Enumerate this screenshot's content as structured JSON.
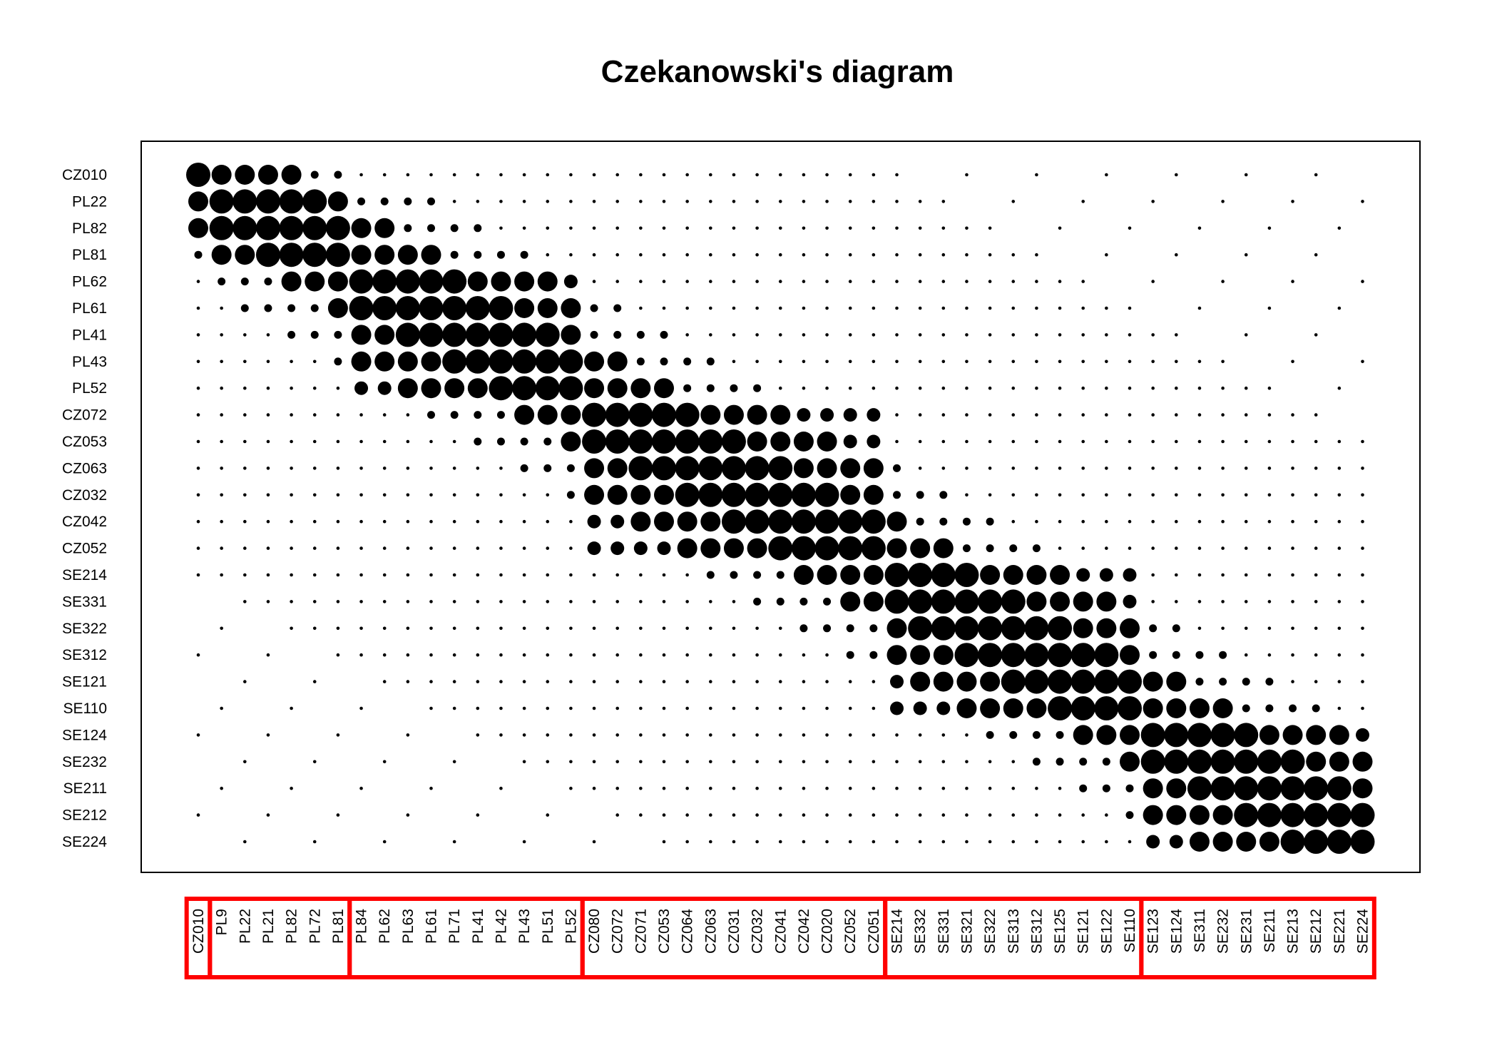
{
  "chart_data": {
    "type": "scatter",
    "title": "Czekanowski's diagram",
    "row_labels": [
      "CZ010",
      "PL22",
      "PL82",
      "PL81",
      "PL62",
      "PL61",
      "PL41",
      "PL43",
      "PL52",
      "CZ072",
      "CZ053",
      "CZ063",
      "CZ032",
      "CZ042",
      "CZ052",
      "SE214",
      "SE331",
      "SE322",
      "SE312",
      "SE121",
      "SE110",
      "SE124",
      "SE232",
      "SE211",
      "SE212",
      "SE224"
    ],
    "column_labels": [
      "CZ010",
      "PL9",
      "PL22",
      "PL21",
      "PL82",
      "PL72",
      "PL81",
      "PL84",
      "PL62",
      "PL63",
      "PL61",
      "PL71",
      "PL41",
      "PL42",
      "PL43",
      "PL51",
      "PL52",
      "CZ080",
      "CZ072",
      "CZ071",
      "CZ053",
      "CZ064",
      "CZ063",
      "CZ031",
      "CZ032",
      "CZ041",
      "CZ042",
      "CZ020",
      "CZ052",
      "CZ051",
      "SE214",
      "SE332",
      "SE331",
      "SE321",
      "SE322",
      "SE313",
      "SE312",
      "SE125",
      "SE121",
      "SE122",
      "SE110",
      "SE123",
      "SE124",
      "SE311",
      "SE232",
      "SE231",
      "SE211",
      "SE213",
      "SE212",
      "SE221",
      "SE224"
    ],
    "cluster_boxes": [
      {
        "from": "CZ010",
        "to": "CZ010"
      },
      {
        "from": "PL9",
        "to": "PL81"
      },
      {
        "from": "PL84",
        "to": "PL52"
      },
      {
        "from": "CZ080",
        "to": "CZ051"
      },
      {
        "from": "SE214",
        "to": "SE110"
      },
      {
        "from": "SE123",
        "to": "SE224"
      }
    ],
    "cluster_box_color": "#ff0000",
    "point_color": "#000000",
    "size_classes": 5,
    "size_scale_note": "cell symbol size encodes similarity class; largest on diagonal blocks"
  }
}
